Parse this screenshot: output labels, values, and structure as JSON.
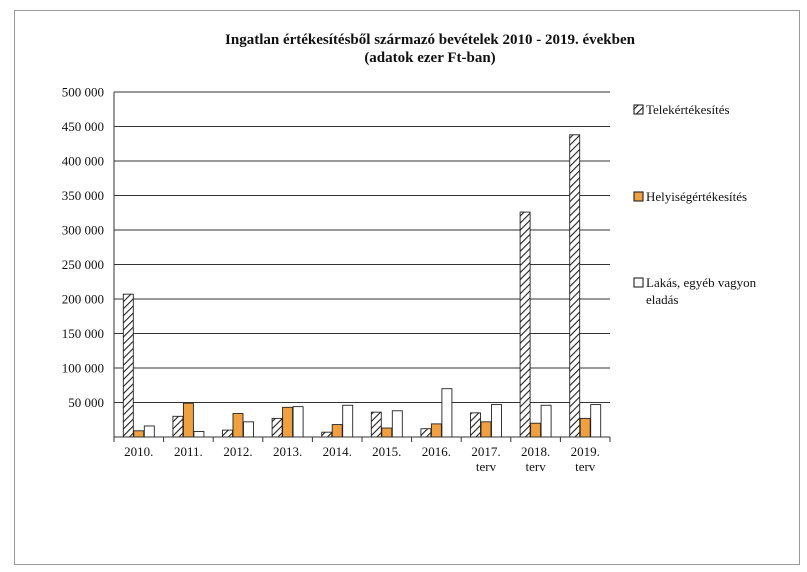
{
  "chart_data": {
    "type": "bar",
    "title": [
      "Ingatlan értékesítésből származó bevételek 2010 - 2019. években",
      "(adatok ezer Ft-ban)"
    ],
    "categories": [
      [
        "2010."
      ],
      [
        "2011."
      ],
      [
        "2012."
      ],
      [
        "2013."
      ],
      [
        "2014."
      ],
      [
        "2015."
      ],
      [
        "2016."
      ],
      [
        "2017.",
        "terv"
      ],
      [
        "2018.",
        "terv"
      ],
      [
        "2019.",
        "terv"
      ]
    ],
    "series": [
      {
        "name": "Telekértékesítés",
        "pattern": "hatch",
        "color": "#ffffff",
        "values": [
          207000,
          30000,
          10000,
          27000,
          7000,
          36000,
          12000,
          35000,
          326000,
          438000
        ]
      },
      {
        "name": "Helyiségértékesítés",
        "pattern": "solid",
        "color": "#f0a040",
        "values": [
          9000,
          49000,
          34000,
          43000,
          18000,
          13000,
          19000,
          22000,
          20000,
          27000
        ]
      },
      {
        "name": "Lakás, egyéb vagyon eladás",
        "pattern": "solid",
        "color": "#ffffff",
        "values": [
          16000,
          8000,
          22000,
          44000,
          46000,
          38000,
          70000,
          47000,
          46000,
          47000
        ]
      }
    ],
    "legend": [
      {
        "lines": [
          "Telekértékesítés"
        ]
      },
      {
        "lines": [
          "Helyiségértékesítés"
        ]
      },
      {
        "lines": [
          "Lakás, egyéb vagyon",
          "eladás"
        ]
      }
    ],
    "y_ticks": [
      "",
      "50 000",
      "100 000",
      "150 000",
      "200 000",
      "250 000",
      "300 000",
      "350 000",
      "400 000",
      "450 000",
      "500 000"
    ],
    "ylim": [
      0,
      500000
    ],
    "grid": true,
    "legend_position": "right"
  }
}
